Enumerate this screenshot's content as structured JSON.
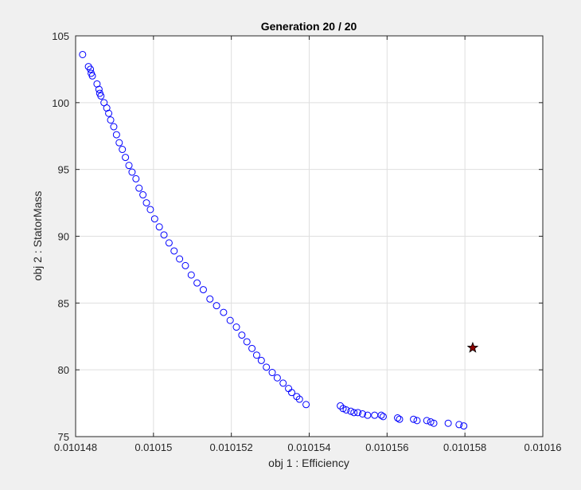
{
  "chart_data": {
    "type": "scatter",
    "title": "Generation 20 / 20",
    "xlabel": "obj 1 : Efficiency",
    "ylabel": "obj 2 : StatorMass",
    "xlim": [
      0.010148,
      0.01016
    ],
    "ylim": [
      75,
      105
    ],
    "xticks": [
      0.010148,
      0.01015,
      0.010152,
      0.010154,
      0.010156,
      0.010158,
      0.01016
    ],
    "xtick_labels": [
      "0.010148",
      "0.01015",
      "0.010152",
      "0.010154",
      "0.010156",
      "0.010158",
      "0.01016"
    ],
    "yticks": [
      75,
      80,
      85,
      90,
      95,
      100,
      105
    ],
    "ytick_labels": [
      "75",
      "80",
      "85",
      "90",
      "95",
      "100",
      "105"
    ],
    "grid": true,
    "marker_color": "#0000ff",
    "star_color": "#8b0000",
    "star_point": {
      "x": 0.0101582,
      "y": 81.65
    },
    "series": [
      {
        "marker": "circle",
        "x": [
          0.01014818,
          0.01014833,
          0.01014838,
          0.0101484,
          0.01014843,
          0.01014855,
          0.0101486,
          0.01014862,
          0.01014865,
          0.01014873,
          0.0101488,
          0.01014885,
          0.0101489,
          0.01014898,
          0.01014905,
          0.01014912,
          0.0101492,
          0.01014928,
          0.01014937,
          0.01014945,
          0.01014955,
          0.01014963,
          0.01014973,
          0.01014982,
          0.01014992,
          0.01015003,
          0.01015015,
          0.01015027,
          0.0101504,
          0.01015053,
          0.01015067,
          0.01015082,
          0.01015097,
          0.01015112,
          0.01015128,
          0.01015145,
          0.01015162,
          0.0101518,
          0.01015197,
          0.01015213,
          0.01015227,
          0.0101524,
          0.01015253,
          0.01015265,
          0.01015277,
          0.0101529,
          0.01015305,
          0.01015318,
          0.01015333,
          0.01015347,
          0.01015355,
          0.01015368,
          0.01015375,
          0.01015392,
          0.0101548,
          0.01015487,
          0.01015495,
          0.01015507,
          0.01015515,
          0.01015525,
          0.01015537,
          0.0101555,
          0.01015568,
          0.01015585,
          0.0101559,
          0.01015627,
          0.01015632,
          0.01015668,
          0.01015677,
          0.01015702,
          0.01015712,
          0.0101572,
          0.01015757,
          0.01015785,
          0.01015797
        ],
        "y": [
          103.6,
          102.7,
          102.5,
          102.2,
          102.0,
          101.4,
          101.0,
          100.7,
          100.5,
          100.0,
          99.6,
          99.2,
          98.7,
          98.2,
          97.6,
          97.0,
          96.5,
          95.9,
          95.3,
          94.8,
          94.3,
          93.6,
          93.1,
          92.5,
          92.0,
          91.3,
          90.7,
          90.1,
          89.5,
          88.9,
          88.3,
          87.8,
          87.1,
          86.5,
          86.0,
          85.3,
          84.8,
          84.3,
          83.7,
          83.2,
          82.6,
          82.1,
          81.6,
          81.1,
          80.7,
          80.2,
          79.8,
          79.4,
          79.0,
          78.6,
          78.3,
          78.0,
          77.8,
          77.4,
          77.3,
          77.1,
          77.0,
          76.9,
          76.8,
          76.8,
          76.7,
          76.6,
          76.6,
          76.6,
          76.5,
          76.4,
          76.3,
          76.3,
          76.2,
          76.2,
          76.1,
          76.0,
          76.0,
          75.9,
          75.8
        ]
      }
    ]
  }
}
